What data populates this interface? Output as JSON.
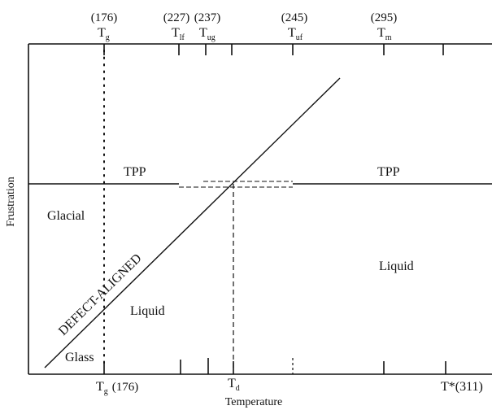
{
  "axes": {
    "x_label": "Temperature",
    "y_label": "Frustration"
  },
  "top_marks": [
    {
      "value": "(176)",
      "symbol": "T",
      "sub": "g"
    },
    {
      "value": "(227)",
      "symbol": "T",
      "sub": "lf"
    },
    {
      "value": "(237)",
      "symbol": "T",
      "sub": "ug"
    },
    {
      "value": "(245)",
      "symbol": "T",
      "sub": "uf"
    },
    {
      "value": "(295)",
      "symbol": "T",
      "sub": "m"
    }
  ],
  "bottom_marks": {
    "tg": {
      "symbol": "T",
      "sub": "g",
      "value": "(176)"
    },
    "td": {
      "symbol": "T",
      "sub": "d"
    },
    "tstar": {
      "text": "T*(311)"
    }
  },
  "regions": {
    "tpp_left": "TPP",
    "tpp_right": "TPP",
    "glacial": "Glacial",
    "liquid_left": "Liquid",
    "liquid_right": "Liquid",
    "glass": "Glass"
  },
  "diagonal_label": "DEFECT-ALIGNED",
  "colors": {
    "line": "#111111",
    "background": "#ffffff"
  }
}
